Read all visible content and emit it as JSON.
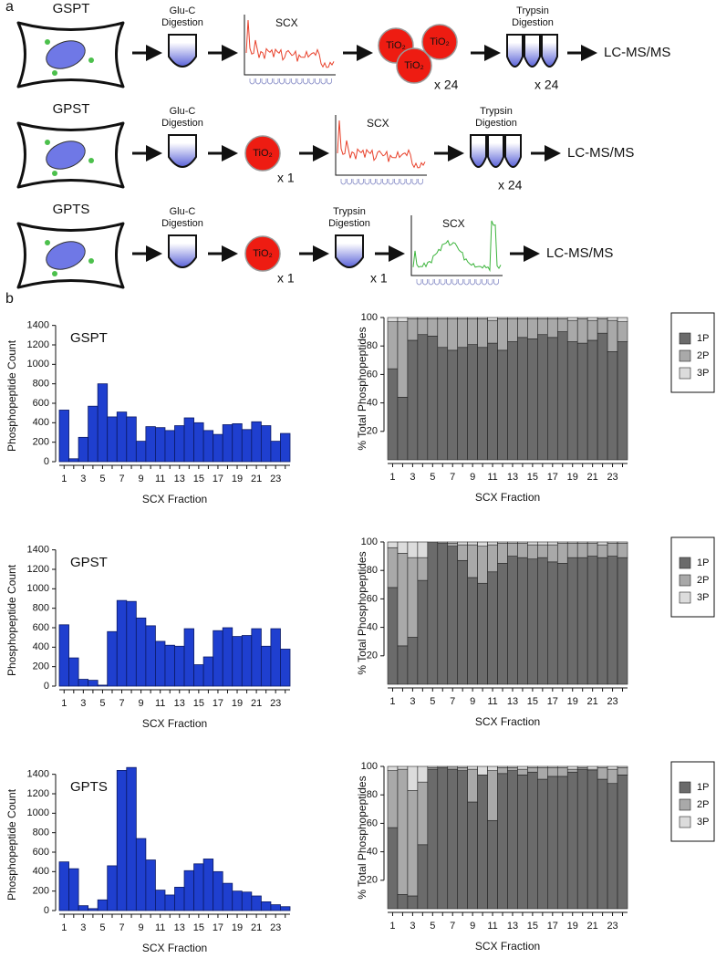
{
  "panels": [
    "a",
    "b"
  ],
  "diagram": {
    "rows": [
      {
        "name": "GSPT",
        "steps": [
          {
            "kind": "tube",
            "text": [
              "Glu-C",
              "Digestion"
            ]
          },
          {
            "kind": "scx",
            "text": "SCX",
            "color": "#e8402a"
          },
          {
            "kind": "tio2-group",
            "text": "TiO₂",
            "count": "x 24"
          },
          {
            "kind": "tubes",
            "text": [
              "Trypsin",
              "Digestion"
            ],
            "count": "x 24"
          },
          {
            "kind": "end",
            "text": "LC-MS/MS"
          }
        ]
      },
      {
        "name": "GPST",
        "steps": [
          {
            "kind": "tube",
            "text": [
              "Glu-C",
              "Digestion"
            ]
          },
          {
            "kind": "tio2",
            "text": "TiO₂",
            "count": "x 1"
          },
          {
            "kind": "scx",
            "text": "SCX",
            "color": "#e8402a"
          },
          {
            "kind": "tubes",
            "text": [
              "Trypsin",
              "Digestion"
            ],
            "count": "x 24"
          },
          {
            "kind": "end",
            "text": "LC-MS/MS"
          }
        ]
      },
      {
        "name": "GPTS",
        "steps": [
          {
            "kind": "tube",
            "text": [
              "Glu-C",
              "Digestion"
            ]
          },
          {
            "kind": "tio2",
            "text": "TiO₂",
            "count": "x 1"
          },
          {
            "kind": "tube",
            "text": [
              "Trypsin",
              "Digestion"
            ],
            "count": "x 1"
          },
          {
            "kind": "scx-green",
            "text": "SCX",
            "color": "#3cb43c"
          },
          {
            "kind": "end",
            "text": "LC-MS/MS"
          }
        ]
      }
    ]
  },
  "chart_data": [
    {
      "type": "bar",
      "title": "GSPT",
      "y_label": "Phosphopeptide Count",
      "x_label": "SCX Fraction",
      "categories": [
        "1",
        null,
        "3",
        null,
        "5",
        null,
        "7",
        null,
        "9",
        null,
        "11",
        null,
        "13",
        null,
        "15",
        null,
        "17",
        null,
        "19",
        null,
        "21",
        null,
        "23",
        null
      ],
      "values": [
        530,
        30,
        250,
        570,
        800,
        460,
        510,
        460,
        210,
        360,
        350,
        320,
        370,
        450,
        400,
        320,
        280,
        380,
        390,
        330,
        410,
        370,
        210,
        290
      ],
      "color": "#1f3fcf",
      "ylim": [
        0,
        1500
      ],
      "yticks": [
        0,
        200,
        400,
        600,
        800,
        1000,
        1200,
        1400
      ]
    },
    {
      "type": "stacked_bar",
      "y_label": "% Total Phosphopeptides",
      "x_label": "SCX Fraction",
      "categories": [
        "1",
        null,
        "3",
        null,
        "5",
        null,
        "7",
        null,
        "9",
        null,
        "11",
        null,
        "13",
        null,
        "15",
        null,
        "17",
        null,
        "19",
        null,
        "21",
        null,
        "23",
        null
      ],
      "series": [
        {
          "name": "1P",
          "color": "#6b6b6b",
          "values": [
            64,
            44,
            84,
            88,
            87,
            79,
            77,
            79,
            81,
            79,
            82,
            77,
            83,
            86,
            85,
            88,
            86,
            90,
            83,
            82,
            84,
            89,
            76,
            83
          ]
        },
        {
          "name": "2P",
          "color": "#a9a9a9",
          "values": [
            33,
            53,
            15,
            11,
            12,
            20,
            22,
            20,
            18,
            20,
            16,
            22,
            16,
            13,
            14,
            11,
            13,
            9,
            15,
            17,
            14,
            10,
            22,
            14
          ]
        },
        {
          "name": "3P",
          "color": "#dcdcdc",
          "values": [
            3,
            3,
            1,
            1,
            1,
            1,
            1,
            1,
            1,
            1,
            2,
            1,
            1,
            1,
            1,
            1,
            1,
            1,
            2,
            1,
            2,
            1,
            2,
            3
          ]
        }
      ],
      "ylim": [
        0,
        100
      ],
      "yticks": [
        20,
        40,
        60,
        80,
        100
      ],
      "legend": "right"
    },
    {
      "type": "bar",
      "title": "GPST",
      "y_label": "Phosphopeptide Count",
      "x_label": "SCX Fraction",
      "categories": [
        "1",
        null,
        "3",
        null,
        "5",
        null,
        "7",
        null,
        "9",
        null,
        "11",
        null,
        "13",
        null,
        "15",
        null,
        "17",
        null,
        "19",
        null,
        "21",
        null,
        "23",
        null
      ],
      "values": [
        630,
        290,
        70,
        60,
        10,
        560,
        880,
        870,
        700,
        620,
        460,
        420,
        410,
        590,
        220,
        300,
        570,
        600,
        510,
        520,
        590,
        410,
        590,
        380
      ],
      "color": "#1f3fcf",
      "ylim": [
        0,
        1500
      ],
      "yticks": [
        0,
        200,
        400,
        600,
        800,
        1000,
        1200,
        1400
      ]
    },
    {
      "type": "stacked_bar",
      "y_label": "% Total Phosphopeptides",
      "x_label": "SCX Fraction",
      "categories": [
        "1",
        null,
        "3",
        null,
        "5",
        null,
        "7",
        null,
        "9",
        null,
        "11",
        null,
        "13",
        null,
        "15",
        null,
        "17",
        null,
        "19",
        null,
        "21",
        null,
        "23",
        null
      ],
      "series": [
        {
          "name": "1P",
          "color": "#6b6b6b",
          "values": [
            68,
            27,
            33,
            73,
            100,
            99,
            97,
            87,
            75,
            71,
            79,
            85,
            90,
            89,
            88,
            89,
            86,
            85,
            89,
            89,
            90,
            89,
            90,
            89
          ]
        },
        {
          "name": "2P",
          "color": "#a9a9a9",
          "values": [
            28,
            65,
            56,
            16,
            0,
            1,
            2,
            11,
            23,
            26,
            19,
            14,
            9,
            10,
            10,
            9,
            12,
            14,
            10,
            10,
            9,
            9,
            9,
            10
          ]
        },
        {
          "name": "3P",
          "color": "#dcdcdc",
          "values": [
            4,
            8,
            11,
            11,
            0,
            0,
            1,
            2,
            2,
            3,
            2,
            1,
            1,
            1,
            2,
            2,
            2,
            1,
            1,
            1,
            1,
            2,
            1,
            1
          ]
        }
      ],
      "ylim": [
        0,
        100
      ],
      "yticks": [
        20,
        40,
        60,
        80,
        100
      ],
      "legend": "right"
    },
    {
      "type": "bar",
      "title": "GPTS",
      "y_label": "Phosphopeptide Count",
      "x_label": "SCX Fraction",
      "categories": [
        "1",
        null,
        "3",
        null,
        "5",
        null,
        "7",
        null,
        "9",
        null,
        "11",
        null,
        "13",
        null,
        "15",
        null,
        "17",
        null,
        "19",
        null,
        "21",
        null,
        "23",
        null
      ],
      "values": [
        500,
        430,
        50,
        20,
        110,
        460,
        1440,
        1470,
        740,
        520,
        210,
        160,
        240,
        410,
        480,
        530,
        400,
        280,
        200,
        190,
        150,
        90,
        60,
        40
      ],
      "color": "#1f3fcf",
      "ylim": [
        0,
        1500
      ],
      "yticks": [
        0,
        200,
        400,
        600,
        800,
        1000,
        1200,
        1400
      ]
    },
    {
      "type": "stacked_bar",
      "y_label": "% Total Phosphopeptides",
      "x_label": "SCX Fraction",
      "categories": [
        "1",
        null,
        "3",
        null,
        "5",
        null,
        "7",
        null,
        "9",
        null,
        "11",
        null,
        "13",
        null,
        "15",
        null,
        "17",
        null,
        "19",
        null,
        "21",
        null,
        "23",
        null
      ],
      "series": [
        {
          "name": "1P",
          "color": "#6b6b6b",
          "values": [
            57,
            10,
            9,
            45,
            98,
            99,
            98,
            97,
            75,
            94,
            62,
            95,
            97,
            94,
            96,
            91,
            93,
            93,
            96,
            98,
            97,
            91,
            88,
            94
          ]
        },
        {
          "name": "2P",
          "color": "#a9a9a9",
          "values": [
            40,
            88,
            74,
            44,
            1,
            1,
            2,
            2,
            23,
            0,
            35,
            4,
            2,
            4,
            3,
            8,
            6,
            6,
            2,
            1,
            1,
            8,
            10,
            5
          ]
        },
        {
          "name": "3P",
          "color": "#dcdcdc",
          "values": [
            3,
            2,
            17,
            11,
            1,
            0,
            0,
            1,
            2,
            6,
            3,
            1,
            1,
            2,
            1,
            1,
            1,
            1,
            2,
            1,
            2,
            1,
            2,
            1
          ]
        }
      ],
      "ylim": [
        0,
        100
      ],
      "yticks": [
        20,
        40,
        60,
        80,
        100
      ],
      "legend": "right"
    }
  ]
}
